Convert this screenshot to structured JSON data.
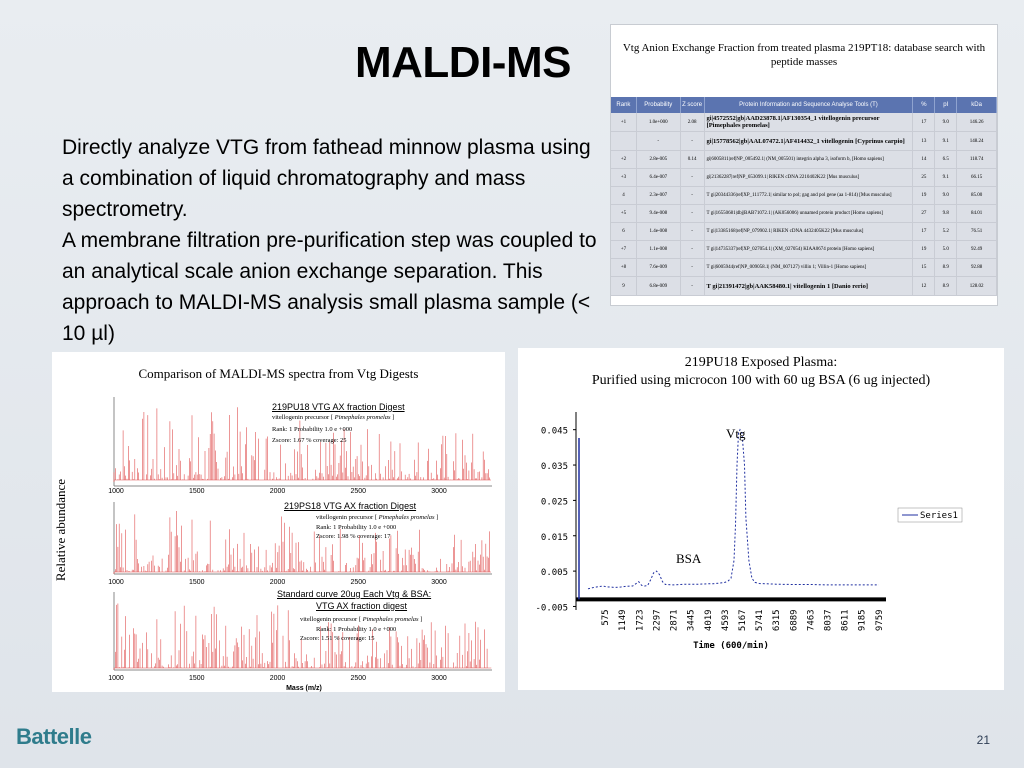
{
  "slide": {
    "title": "MALDI-MS",
    "paragraph1": "Directly analyze VTG from fathead minnow plasma using a combination of liquid chromatography and mass spectrometry.",
    "paragraph2": "A membrane filtration pre-purification step was coupled to an analytical scale anion exchange separation. This approach to MALDI-MS analysis small plasma sample (< 10 µl)",
    "logo": "Battelle",
    "page_number": "21"
  },
  "table": {
    "caption": "Vtg Anion Exchange Fraction from treated plasma 219PT18: database search with peptide masses",
    "headers": [
      "Rank",
      "Probability",
      "Z score",
      "Protein Information and Sequence Analyse Tools (T)",
      "%",
      "pI",
      "kDa"
    ],
    "rows": [
      {
        "rank": "+1",
        "prob": "1.0e+000",
        "z": "2.08",
        "protein": "gi|4572552|gb|AAD23878.1|AF130354_1 vitellogenin precursor [Pimephales promelas]",
        "pct": "17",
        "pi": "9.0",
        "kda": "146.26",
        "big": true
      },
      {
        "rank": "",
        "prob": "-",
        "z": "-",
        "protein": "gi|15778562|gb|AAL07472.1|AF414432_1 vitellogenin [Cyprinus carpio]",
        "pct": "13",
        "pi": "9.1",
        "kda": "148.24",
        "big": true
      },
      {
        "rank": "+2",
        "prob": "2.8e-005",
        "z": "0.14",
        "protein": "gi|6005811|ref|NP_005492.1| (NM_005501) integrin alpha 3, isoform b, [Homo sapiens]",
        "pct": "14",
        "pi": "6.5",
        "kda": "118.74",
        "big": false
      },
      {
        "rank": "+3",
        "prob": "6.4e-007",
        "z": "-",
        "protein": "gi|21362287|ref|NP_653099.1| RIKEN cDNA 2210402K22 [Mus musculus]",
        "pct": "25",
        "pi": "9.1",
        "kda": "66.15",
        "big": false
      },
      {
        "rank": "4",
        "prob": "2.3e-007",
        "z": "-",
        "protein": "T gi|20344336|ref|XP_111772.1| similar to pol; gag and pol gene (aa 1-814) [Mus musculus]",
        "pct": "19",
        "pi": "9.0",
        "kda": "85.00",
        "big": false
      },
      {
        "rank": "+5",
        "prob": "9.4e-008",
        "z": "-",
        "protein": "T gi|16550681|dbj|BAB71072.1| (AK056006) unnamed protein product [Homo sapiens]",
        "pct": "27",
        "pi": "9.8",
        "kda": "84.01",
        "big": false
      },
      {
        "rank": "6",
        "prob": "1.4e-008",
        "z": "-",
        "protein": "T gi|13385168|ref|NP_079902.1| RIKEN cDNA 4432405K22 [Mus musculus]",
        "pct": "17",
        "pi": "5.2",
        "kda": "76.51",
        "big": false
      },
      {
        "rank": "+7",
        "prob": "1.1e-008",
        "z": "-",
        "protein": "T gi|14735337|ref|XP_027054.1| (XM_027054) KIAA0674 protein [Homo sapiens]",
        "pct": "19",
        "pi": "5.0",
        "kda": "92.49",
        "big": false
      },
      {
        "rank": "+8",
        "prob": "7.6e-009",
        "z": "-",
        "protein": "T gi|6005944|ref|NP_009058.1| (NM_007127) villin 1; Villin-1 [Homo sapiens]",
        "pct": "15",
        "pi": "8.9",
        "kda": "92.88",
        "big": false
      },
      {
        "rank": "9",
        "prob": "6.8e-009",
        "z": "-",
        "protein": "T gi|21391472|gb|AAK58480.1| vitellogenin 1 [Danio rerio]",
        "pct": "12",
        "pi": "8.9",
        "kda": "128.02",
        "big": true
      }
    ]
  },
  "spectra": {
    "title": "Comparison of MALDI-MS spectra from Vtg Digests",
    "ylabel": "Relative abundance",
    "xlabel": "Mass (m/z)",
    "ticks": [
      "1000",
      "1500",
      "2000",
      "2500",
      "3000"
    ],
    "panels": [
      {
        "heading": "219PU18 VTG AX fraction Digest",
        "l1": "vitellogenin precursor [",
        "species": "Pimephales promelas",
        "l1end": "]",
        "l2": "Rank: 1          Probability 1.0 e +000",
        "l3": "Zscore: 1.67       % coverage: 25"
      },
      {
        "heading": "219PS18  VTG AX fraction Digest",
        "l1": "vitellogenin precursor [",
        "species": "Pimephales promelas",
        "l1end": "]",
        "l2": "Rank: 1          Probability 1.0 e +000",
        "l3": "Zscore: 1.98       % coverage: 17"
      },
      {
        "heading": "Standard curve 20ug Each  Vtg & BSA:",
        "heading2": "VTG AX fraction digest",
        "l1": "vitellogenin precursor [",
        "species": "Pimephales promelas",
        "l1end": "]",
        "l2": "Rank: 1          Probability 1.0 e +000",
        "l3": "Zscore: 1.51       % coverage: 15"
      }
    ]
  },
  "chart_data": {
    "type": "line",
    "title": "219PU18 Exposed Plasma:",
    "subtitle": "Purified using microcon 100 with 60 ug BSA (6 ug injected)",
    "xlabel": "Time (600/min)",
    "ylabel": "",
    "categories": [
      "575",
      "1149",
      "1723",
      "2297",
      "2871",
      "3445",
      "4019",
      "4593",
      "5167",
      "5741",
      "6315",
      "6889",
      "7463",
      "8037",
      "8611",
      "9185",
      "9759"
    ],
    "yticks": [
      "-0.005",
      "0.005",
      "0.015",
      "0.025",
      "0.035",
      "0.045"
    ],
    "ylim": [
      -0.005,
      0.05
    ],
    "series": [
      {
        "name": "Series1",
        "color": "#1f2fa0",
        "points": [
          [
            0,
            0
          ],
          [
            200,
            0.0004
          ],
          [
            500,
            0.0008
          ],
          [
            600,
            0.0006
          ],
          [
            700,
            0.0005
          ],
          [
            900,
            0.0004
          ],
          [
            1100,
            0.0005
          ],
          [
            1300,
            0.0007
          ],
          [
            1500,
            0.0008
          ],
          [
            1700,
            0.002
          ],
          [
            1800,
            0.001
          ],
          [
            1900,
            0.0008
          ],
          [
            2000,
            0.0009
          ],
          [
            2100,
            0.0025
          ],
          [
            2200,
            0.0045
          ],
          [
            2297,
            0.005
          ],
          [
            2400,
            0.004
          ],
          [
            2500,
            0.002
          ],
          [
            2600,
            0.0012
          ],
          [
            2871,
            0.0011
          ],
          [
            3100,
            0.0012
          ],
          [
            3300,
            0.0013
          ],
          [
            3445,
            0.0013
          ],
          [
            3700,
            0.0013
          ],
          [
            4019,
            0.0014
          ],
          [
            4200,
            0.0014
          ],
          [
            4400,
            0.0016
          ],
          [
            4593,
            0.0018
          ],
          [
            4700,
            0.0022
          ],
          [
            4800,
            0.003
          ],
          [
            4900,
            0.008
          ],
          [
            4950,
            0.018
          ],
          [
            5000,
            0.035
          ],
          [
            5050,
            0.044
          ],
          [
            5100,
            0.045
          ],
          [
            5167,
            0.044
          ],
          [
            5250,
            0.035
          ],
          [
            5300,
            0.02
          ],
          [
            5400,
            0.008
          ],
          [
            5500,
            0.003
          ],
          [
            5600,
            0.0018
          ],
          [
            5741,
            0.0015
          ],
          [
            6000,
            0.0014
          ],
          [
            6315,
            0.0013
          ],
          [
            6889,
            0.0012
          ],
          [
            7463,
            0.0012
          ],
          [
            8037,
            0.0011
          ],
          [
            8611,
            0.0011
          ],
          [
            9185,
            0.0011
          ],
          [
            9759,
            0.0011
          ]
        ]
      }
    ],
    "annotations": [
      "Vtg",
      "BSA"
    ],
    "legend": "right"
  }
}
